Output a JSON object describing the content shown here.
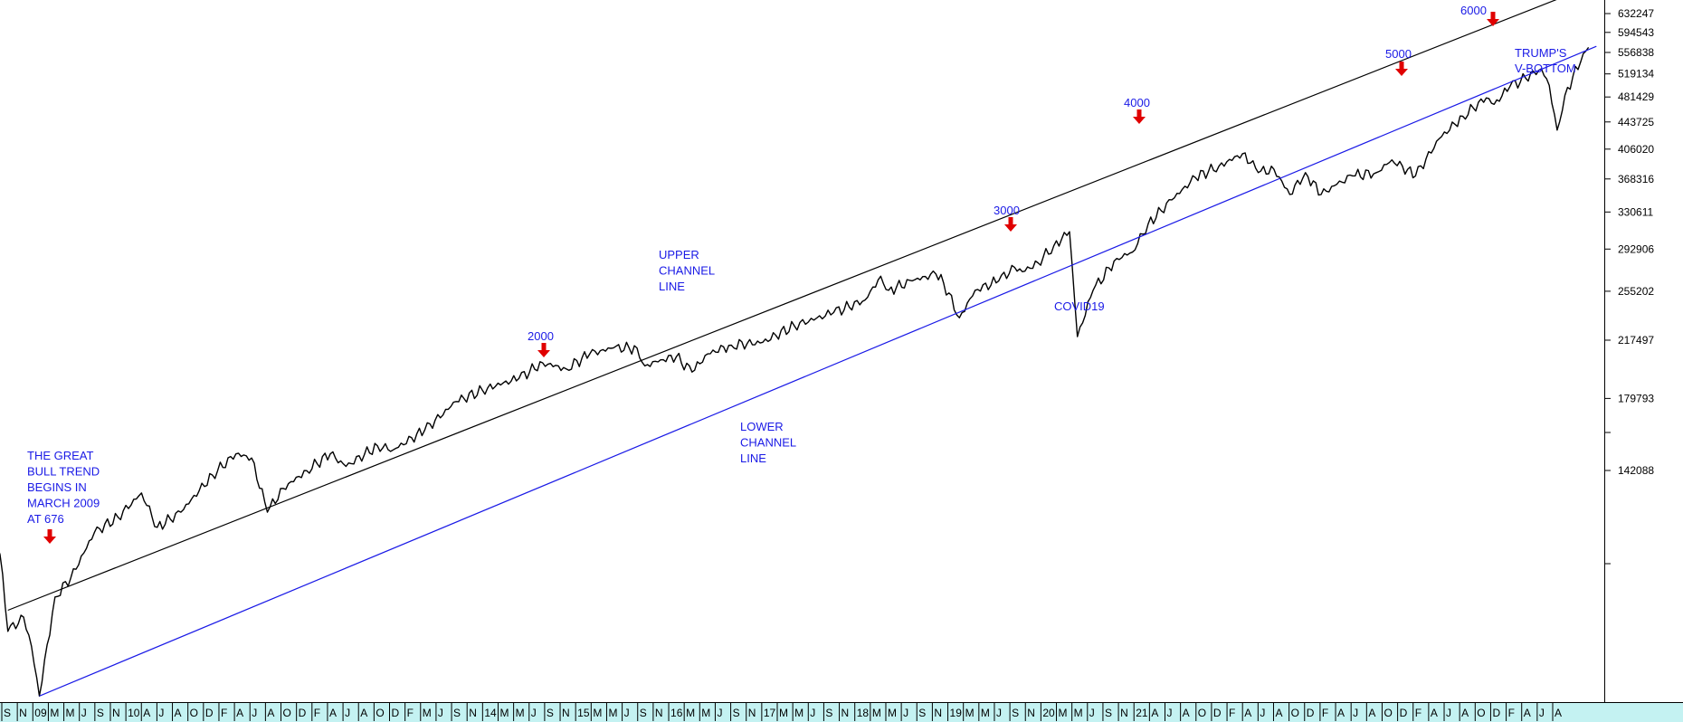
{
  "colors": {
    "price": "#000000",
    "upper_channel": "#000000",
    "lower_channel": "#1a1ae6",
    "annotation_text": "#1a1ae6",
    "arrow": "#e00000",
    "time_bar": "#c4f2f2"
  },
  "chart_data": {
    "type": "line",
    "title": "",
    "xlabel": "",
    "ylabel": "",
    "y_scale": "log",
    "grid": false,
    "y_ticks": [
      "632247",
      "594543",
      "556838",
      "519134",
      "481429",
      "443725",
      "406020",
      "368316",
      "330611",
      "292906",
      "255202",
      "217497",
      "179793",
      "142088"
    ],
    "month_labels": [
      "S",
      "N",
      "09",
      "M",
      "M",
      "J",
      "S",
      "N",
      "10",
      "A",
      "J",
      "A",
      "O",
      "D",
      "F",
      "A",
      "J",
      "A",
      "O",
      "D",
      "F",
      "A",
      "J",
      "A",
      "O",
      "D",
      "F",
      "M",
      "J",
      "S",
      "N",
      "14",
      "M",
      "M",
      "J",
      "S",
      "N",
      "15",
      "M",
      "M",
      "J",
      "S",
      "N",
      "16",
      "M",
      "M",
      "J",
      "S",
      "N",
      "17",
      "M",
      "M",
      "J",
      "S",
      "N",
      "18",
      "M",
      "M",
      "J",
      "S",
      "N",
      "19",
      "M",
      "M",
      "J",
      "S",
      "N",
      "20",
      "M",
      "M",
      "J",
      "S",
      "N",
      "21",
      "A",
      "J",
      "A",
      "O",
      "D",
      "F",
      "A",
      "J",
      "A",
      "O",
      "D",
      "F",
      "A",
      "J",
      "A",
      "O",
      "D",
      "F",
      "A",
      "J",
      "A",
      "O",
      "D",
      "F",
      "A",
      "J",
      "A"
    ],
    "x_range": [
      "2008-09",
      "2025-09"
    ],
    "series": [
      {
        "key": "price",
        "points": [
          [
            "2008-09",
            122000
          ],
          [
            "2008-10",
            108000
          ],
          [
            "2008-11",
            84000
          ],
          [
            "2009-01",
            88000
          ],
          [
            "2009-02",
            80000
          ],
          [
            "2009-03",
            68000
          ],
          [
            "2009-05",
            94000
          ],
          [
            "2009-07",
            100000
          ],
          [
            "2009-10",
            116000
          ],
          [
            "2010-01",
            122000
          ],
          [
            "2010-04",
            132000
          ],
          [
            "2010-06",
            118000
          ],
          [
            "2010-09",
            124000
          ],
          [
            "2011-01",
            140000
          ],
          [
            "2011-04",
            150000
          ],
          [
            "2011-06",
            148000
          ],
          [
            "2011-08",
            124000
          ],
          [
            "2011-10",
            134000
          ],
          [
            "2012-01",
            142000
          ],
          [
            "2012-04",
            150000
          ],
          [
            "2012-06",
            144000
          ],
          [
            "2012-10",
            154000
          ],
          [
            "2012-12",
            152000
          ],
          [
            "2013-04",
            162000
          ],
          [
            "2013-08",
            178000
          ],
          [
            "2013-12",
            186000
          ],
          [
            "2014-04",
            192000
          ],
          [
            "2014-07",
            202000
          ],
          [
            "2014-10",
            198000
          ],
          [
            "2015-01",
            208000
          ],
          [
            "2015-04",
            212000
          ],
          [
            "2015-07",
            212000
          ],
          [
            "2015-08",
            200000
          ],
          [
            "2015-10",
            204000
          ],
          [
            "2015-12",
            206000
          ],
          [
            "2016-02",
            196000
          ],
          [
            "2016-04",
            208000
          ],
          [
            "2016-07",
            214000
          ],
          [
            "2016-11",
            216000
          ],
          [
            "2017-03",
            228000
          ],
          [
            "2017-08",
            238000
          ],
          [
            "2017-12",
            248000
          ],
          [
            "2018-02",
            268000
          ],
          [
            "2018-03",
            256000
          ],
          [
            "2018-06",
            264000
          ],
          [
            "2018-09",
            270000
          ],
          [
            "2018-10",
            262000
          ],
          [
            "2018-12",
            234000
          ],
          [
            "2019-02",
            256000
          ],
          [
            "2019-05",
            264000
          ],
          [
            "2019-07",
            276000
          ],
          [
            "2019-08",
            272000
          ],
          [
            "2019-10",
            280000
          ],
          [
            "2019-12",
            296000
          ],
          [
            "2020-02",
            310000
          ],
          [
            "2020-03",
            220000
          ],
          [
            "2020-05",
            256000
          ],
          [
            "2020-08",
            284000
          ],
          [
            "2020-10",
            290000
          ],
          [
            "2020-12",
            318000
          ],
          [
            "2021-03",
            344000
          ],
          [
            "2021-06",
            370000
          ],
          [
            "2021-09",
            384000
          ],
          [
            "2021-12",
            400000
          ],
          [
            "2022-01",
            388000
          ],
          [
            "2022-02",
            376000
          ],
          [
            "2022-04",
            380000
          ],
          [
            "2022-06",
            350000
          ],
          [
            "2022-08",
            376000
          ],
          [
            "2022-10",
            350000
          ],
          [
            "2022-12",
            362000
          ],
          [
            "2023-02",
            372000
          ],
          [
            "2023-05",
            376000
          ],
          [
            "2023-07",
            392000
          ],
          [
            "2023-10",
            372000
          ],
          [
            "2024-01",
            420000
          ],
          [
            "2024-04",
            452000
          ],
          [
            "2024-07",
            480000
          ],
          [
            "2024-08",
            470000
          ],
          [
            "2024-10",
            498000
          ],
          [
            "2024-12",
            512000
          ],
          [
            "2025-02",
            528000
          ],
          [
            "2025-03",
            500000
          ],
          [
            "2025-04",
            432000
          ],
          [
            "2025-05",
            484000
          ],
          [
            "2025-06",
            514000
          ],
          [
            "2025-07",
            540000
          ],
          [
            "2025-08",
            566000
          ]
        ]
      },
      {
        "key": "upper_channel",
        "points": [
          [
            "2008-11",
            90000
          ],
          [
            "2025-06",
            676000
          ]
        ]
      },
      {
        "key": "lower_channel",
        "points": [
          [
            "2009-03",
            68000
          ],
          [
            "2025-09",
            568000
          ]
        ]
      }
    ],
    "annotations": [
      {
        "lines": [
          "THE GREAT",
          "BULL TREND",
          "BEGINS IN",
          "MARCH 2009",
          " AT 676"
        ]
      },
      {
        "lines": [
          "2000"
        ]
      },
      {
        "lines": [
          "UPPER",
          "CHANNEL",
          "LINE"
        ]
      },
      {
        "lines": [
          "LOWER",
          "CHANNEL",
          "LINE"
        ]
      },
      {
        "lines": [
          "3000"
        ]
      },
      {
        "lines": [
          "COVID19"
        ]
      },
      {
        "lines": [
          "4000"
        ]
      },
      {
        "lines": [
          "5000"
        ]
      },
      {
        "lines": [
          "6000"
        ]
      },
      {
        "lines": [
          "TRUMP'S",
          "V-BOTTOM"
        ]
      }
    ]
  }
}
